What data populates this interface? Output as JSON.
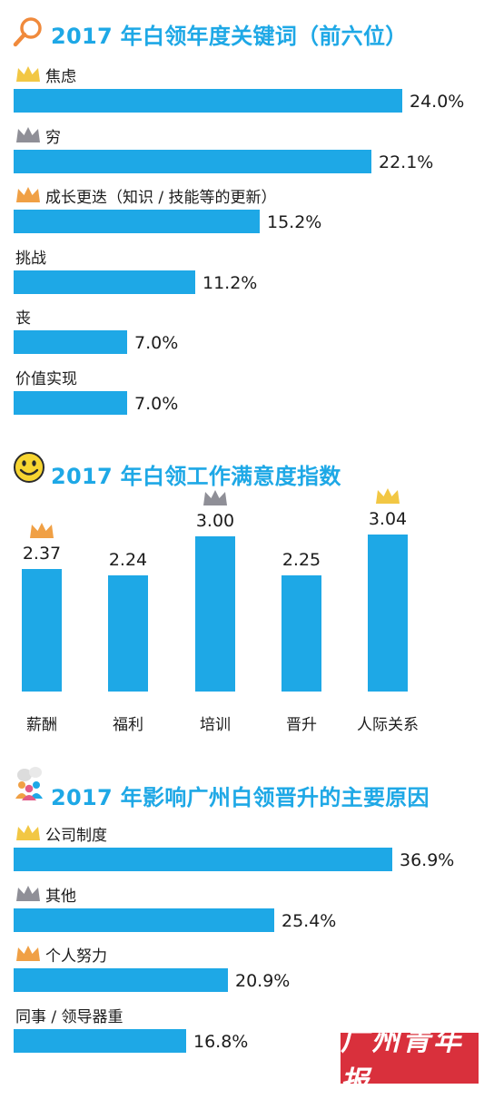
{
  "colors": {
    "accent": "#1ea8e6",
    "gold": "#f2c744",
    "silver": "#8f8f97",
    "bronze": "#f0a045",
    "brand": "#d9303c"
  },
  "chart_data": [
    {
      "type": "bar",
      "orientation": "horizontal",
      "title": "2017 年白领年度关键词（前六位）",
      "title_icon": "magnifier-icon",
      "unit": "%",
      "categories": [
        "焦虑",
        "穷",
        "成长更迭（知识 / 技能等的更新）",
        "挑战",
        "丧",
        "价值实现"
      ],
      "values": [
        24.0,
        22.1,
        15.2,
        11.2,
        7.0,
        7.0
      ],
      "value_labels": [
        "24.0%",
        "22.1%",
        "15.2%",
        "11.2%",
        "7.0%",
        "7.0%"
      ],
      "crowns": [
        "gold",
        "silver",
        "bronze",
        null,
        null,
        null
      ]
    },
    {
      "type": "bar",
      "orientation": "vertical",
      "title": "2017 年白领工作满意度指数",
      "title_icon": "smiley-icon",
      "categories": [
        "薪酬",
        "福利",
        "培训",
        "晋升",
        "人际关系"
      ],
      "values": [
        2.37,
        2.24,
        3.0,
        2.25,
        3.04
      ],
      "value_labels": [
        "2.37",
        "2.24",
        "3.00",
        "2.25",
        "3.04"
      ],
      "crowns": [
        "bronze",
        null,
        "silver",
        null,
        "gold"
      ]
    },
    {
      "type": "bar",
      "orientation": "horizontal",
      "title": "2017 年影响广州白领晋升的主要原因",
      "title_icon": "people-icon",
      "unit": "%",
      "categories": [
        "公司制度",
        "其他",
        "个人努力",
        "同事 / 领导器重"
      ],
      "values": [
        36.9,
        25.4,
        20.9,
        16.8
      ],
      "value_labels": [
        "36.9%",
        "25.4%",
        "20.9%",
        "16.8%"
      ],
      "crowns": [
        "gold",
        "silver",
        "bronze",
        null
      ]
    }
  ],
  "brand": "广州青年报"
}
